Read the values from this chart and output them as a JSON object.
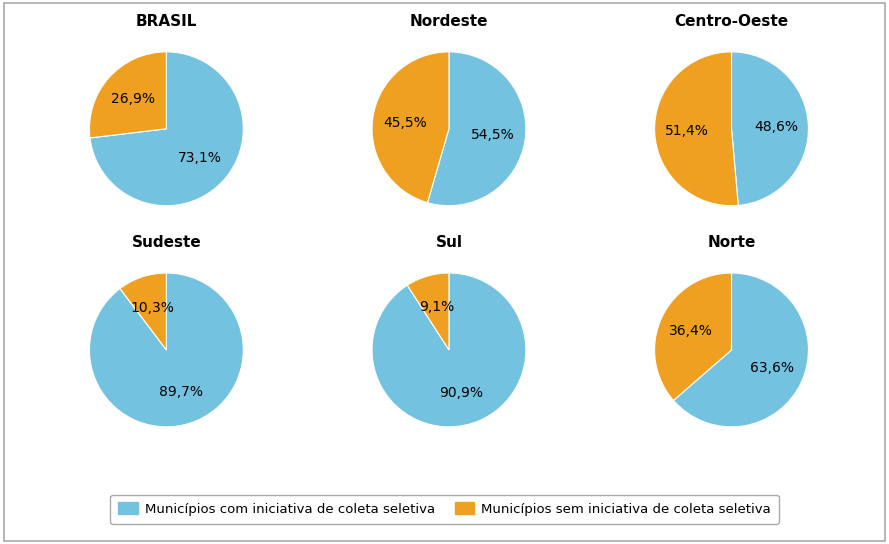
{
  "charts": [
    {
      "title": "BRASIL",
      "with": 73.1,
      "without": 26.9
    },
    {
      "title": "Nordeste",
      "with": 54.5,
      "without": 45.5
    },
    {
      "title": "Centro-Oeste",
      "with": 48.6,
      "without": 51.4
    },
    {
      "title": "Sudeste",
      "with": 89.7,
      "without": 10.3
    },
    {
      "title": "Sul",
      "with": 90.9,
      "without": 9.1
    },
    {
      "title": "Norte",
      "with": 63.6,
      "without": 36.4
    }
  ],
  "color_with": "#72c2e0",
  "color_without": "#f0a020",
  "background": "#ffffff",
  "border_color": "#aaaaaa",
  "legend_with": "Municípios com iniciativa de coleta seletiva",
  "legend_without": "Municípios sem iniciativa de coleta seletiva",
  "title_fontsize": 11,
  "label_fontsize": 10,
  "legend_fontsize": 9.5
}
